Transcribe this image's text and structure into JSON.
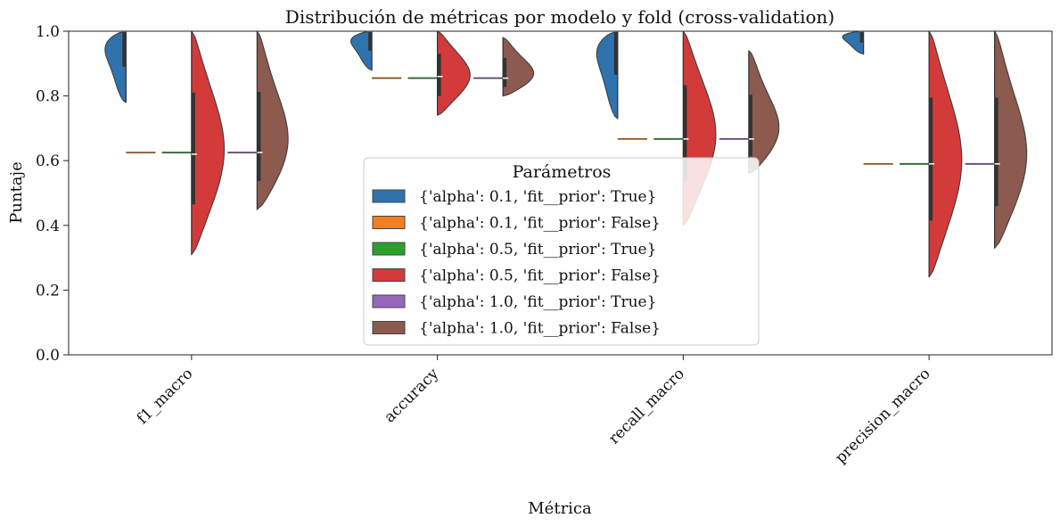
{
  "chart_data": {
    "type": "violin",
    "title": "Distribución de métricas por modelo y fold (cross-validation)",
    "xlabel": "Métrica",
    "ylabel": "Puntaje",
    "ylim": [
      0,
      1
    ],
    "yticks": [
      0.0,
      0.2,
      0.4,
      0.6,
      0.8,
      1.0
    ],
    "ytick_labels": [
      "0.0",
      "0.2",
      "0.4",
      "0.6",
      "0.8",
      "1.0"
    ],
    "categories": [
      "f1_macro",
      "accuracy",
      "recall_macro",
      "precision_macro"
    ],
    "grid": false,
    "legend": {
      "title": "Parámetros",
      "placement": "center",
      "entries": [
        {
          "label": "{'alpha': 0.1, 'fit__prior': True}",
          "color": "#2e73ae"
        },
        {
          "label": "{'alpha': 0.1, 'fit__prior': False}",
          "color": "#f57f20"
        },
        {
          "label": "{'alpha': 0.5, 'fit__prior': True}",
          "color": "#2ca02c"
        },
        {
          "label": "{'alpha': 0.5, 'fit__prior': False}",
          "color": "#d33a3a"
        },
        {
          "label": "{'alpha': 1.0, 'fit__prior': True}",
          "color": "#9467bd"
        },
        {
          "label": "{'alpha': 1.0, 'fit__prior': False}",
          "color": "#8c5a4f"
        }
      ]
    },
    "series": [
      {
        "name": "{'alpha': 0.1, 'fit__prior': True}",
        "color": "#2e73ae",
        "violins": [
          {
            "category": "f1_macro",
            "min": 0.78,
            "max": 1.0,
            "median": 1.0
          },
          {
            "category": "accuracy",
            "min": 0.88,
            "max": 1.0,
            "median": 1.0
          },
          {
            "category": "recall_macro",
            "min": 0.73,
            "max": 1.0,
            "median": 1.0
          },
          {
            "category": "precision_macro",
            "min": 0.93,
            "max": 1.0,
            "median": 1.0
          }
        ]
      },
      {
        "name": "{'alpha': 0.1, 'fit__prior': False}",
        "color": "#f57f20",
        "violins": [
          {
            "category": "f1_macro",
            "min": 0.625,
            "max": 0.625,
            "median": 0.625
          },
          {
            "category": "accuracy",
            "min": 0.855,
            "max": 0.855,
            "median": 0.855
          },
          {
            "category": "recall_macro",
            "min": 0.667,
            "max": 0.667,
            "median": 0.667
          },
          {
            "category": "precision_macro",
            "min": 0.59,
            "max": 0.59,
            "median": 0.59
          }
        ]
      },
      {
        "name": "{'alpha': 0.5, 'fit__prior': True}",
        "color": "#2ca02c",
        "violins": [
          {
            "category": "f1_macro",
            "min": 0.62,
            "max": 0.63,
            "median": 0.625
          },
          {
            "category": "accuracy",
            "min": 0.85,
            "max": 0.86,
            "median": 0.855
          },
          {
            "category": "recall_macro",
            "min": 0.667,
            "max": 0.667,
            "median": 0.667
          },
          {
            "category": "precision_macro",
            "min": 0.585,
            "max": 0.6,
            "median": 0.59
          }
        ]
      },
      {
        "name": "{'alpha': 0.5, 'fit__prior': False}",
        "color": "#d33a3a",
        "violins": [
          {
            "category": "f1_macro",
            "min": 0.31,
            "max": 1.0,
            "median": 0.62
          },
          {
            "category": "accuracy",
            "min": 0.74,
            "max": 1.0,
            "median": 0.86
          },
          {
            "category": "recall_macro",
            "min": 0.4,
            "max": 1.0,
            "median": 0.667
          },
          {
            "category": "precision_macro",
            "min": 0.24,
            "max": 1.0,
            "median": 0.59
          }
        ]
      },
      {
        "name": "{'alpha': 1.0, 'fit__prior': True}",
        "color": "#9467bd",
        "violins": [
          {
            "category": "f1_macro",
            "min": 0.625,
            "max": 0.625,
            "median": 0.625
          },
          {
            "category": "accuracy",
            "min": 0.855,
            "max": 0.855,
            "median": 0.855
          },
          {
            "category": "recall_macro",
            "min": 0.667,
            "max": 0.667,
            "median": 0.667
          },
          {
            "category": "precision_macro",
            "min": 0.59,
            "max": 0.59,
            "median": 0.59
          }
        ]
      },
      {
        "name": "{'alpha': 1.0, 'fit__prior': False}",
        "color": "#8c5a4f",
        "violins": [
          {
            "category": "f1_macro",
            "min": 0.45,
            "max": 1.0,
            "median": 0.625
          },
          {
            "category": "accuracy",
            "min": 0.8,
            "max": 0.98,
            "median": 0.855
          },
          {
            "category": "recall_macro",
            "min": 0.56,
            "max": 0.94,
            "median": 0.667
          },
          {
            "category": "precision_macro",
            "min": 0.33,
            "max": 1.0,
            "median": 0.59
          }
        ]
      }
    ]
  }
}
